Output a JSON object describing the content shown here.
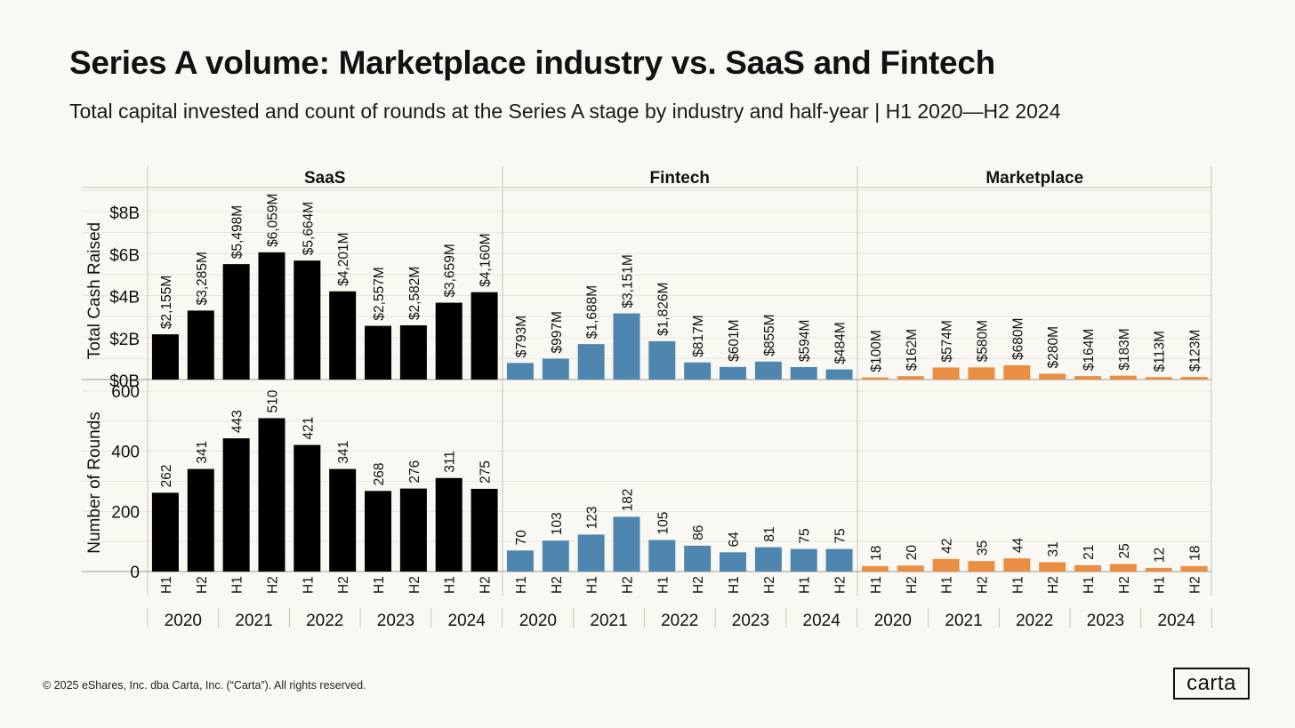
{
  "title": "Series A volume: Marketplace industry vs. SaaS and Fintech",
  "subtitle": "Total capital invested and count of rounds at the Series A stage by industry and half-year | H1 2020—H2 2024",
  "footer": "© 2025 eShares, Inc. dba Carta, Inc. (“Carta”). All rights reserved.",
  "logo_text": "carta",
  "chart_data": {
    "type": "bar",
    "halves": [
      "H1",
      "H2",
      "H1",
      "H2",
      "H1",
      "H2",
      "H1",
      "H2",
      "H1",
      "H2"
    ],
    "years": [
      "2020",
      "2021",
      "2022",
      "2023",
      "2024"
    ],
    "metrics": [
      {
        "label": "Total Cash Raised",
        "ylim": [
          0,
          9000
        ],
        "ticks": [
          0,
          2000,
          4000,
          6000,
          8000
        ],
        "tick_labels": [
          "$0B",
          "$2B",
          "$4B",
          "$6B",
          "$8B"
        ]
      },
      {
        "label": "Number of Rounds",
        "ylim": [
          0,
          640
        ],
        "ticks": [
          0,
          200,
          400,
          600
        ],
        "tick_labels": [
          "0",
          "200",
          "400",
          "600"
        ]
      }
    ],
    "panels": [
      {
        "name": "SaaS",
        "color": "#000000",
        "cash": [
          2155,
          3285,
          5498,
          6059,
          5664,
          4201,
          2557,
          2582,
          3659,
          4160
        ],
        "cash_labels": [
          "$2,155M",
          "$3,285M",
          "$5,498M",
          "$6,059M",
          "$5,664M",
          "$4,201M",
          "$2,557M",
          "$2,582M",
          "$3,659M",
          "$4,160M"
        ],
        "rounds": [
          262,
          341,
          443,
          510,
          421,
          341,
          268,
          276,
          311,
          275
        ]
      },
      {
        "name": "Fintech",
        "color": "#4E86B0",
        "cash": [
          793,
          997,
          1688,
          3151,
          1826,
          817,
          601,
          855,
          594,
          484
        ],
        "cash_labels": [
          "$793M",
          "$997M",
          "$1,688M",
          "$3,151M",
          "$1,826M",
          "$817M",
          "$601M",
          "$855M",
          "$594M",
          "$484M"
        ],
        "rounds": [
          70,
          103,
          123,
          182,
          105,
          86,
          64,
          81,
          75,
          75
        ]
      },
      {
        "name": "Marketplace",
        "color": "#E98E42",
        "cash": [
          100,
          162,
          574,
          580,
          680,
          280,
          164,
          183,
          113,
          123
        ],
        "cash_labels": [
          "$100M",
          "$162M",
          "$574M",
          "$580M",
          "$680M",
          "$280M",
          "$164M",
          "$183M",
          "$113M",
          "$123M"
        ],
        "rounds": [
          18,
          20,
          42,
          35,
          44,
          31,
          21,
          25,
          12,
          18
        ]
      }
    ],
    "grid": true
  }
}
